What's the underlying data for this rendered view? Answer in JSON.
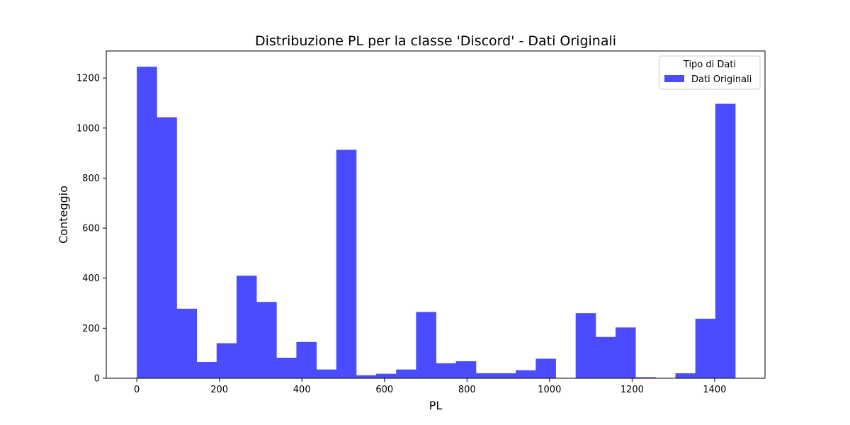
{
  "chart_data": {
    "type": "bar",
    "title": "Distribuzione PL per la classe 'Discord' - Dati Originali",
    "xlabel": "PL",
    "ylabel": "Conteggio",
    "xlim": [
      -74,
      1522
    ],
    "ylim": [
      0,
      1308
    ],
    "bin_start": 0,
    "bin_width": 48.33,
    "values": [
      1245,
      1043,
      278,
      65,
      140,
      410,
      305,
      82,
      145,
      35,
      913,
      12,
      18,
      35,
      265,
      60,
      68,
      20,
      20,
      32,
      78,
      0,
      260,
      165,
      203,
      4,
      0,
      20,
      238,
      1097
    ],
    "x_ticks": [
      0,
      200,
      400,
      600,
      800,
      1000,
      1200,
      1400
    ],
    "y_ticks": [
      0,
      200,
      400,
      600,
      800,
      1000,
      1200
    ],
    "series": [
      {
        "name": "Dati Originali",
        "color": "#4b4bff"
      }
    ],
    "legend": {
      "title": "Tipo di Dati",
      "position": "top-right"
    },
    "grid": false
  }
}
